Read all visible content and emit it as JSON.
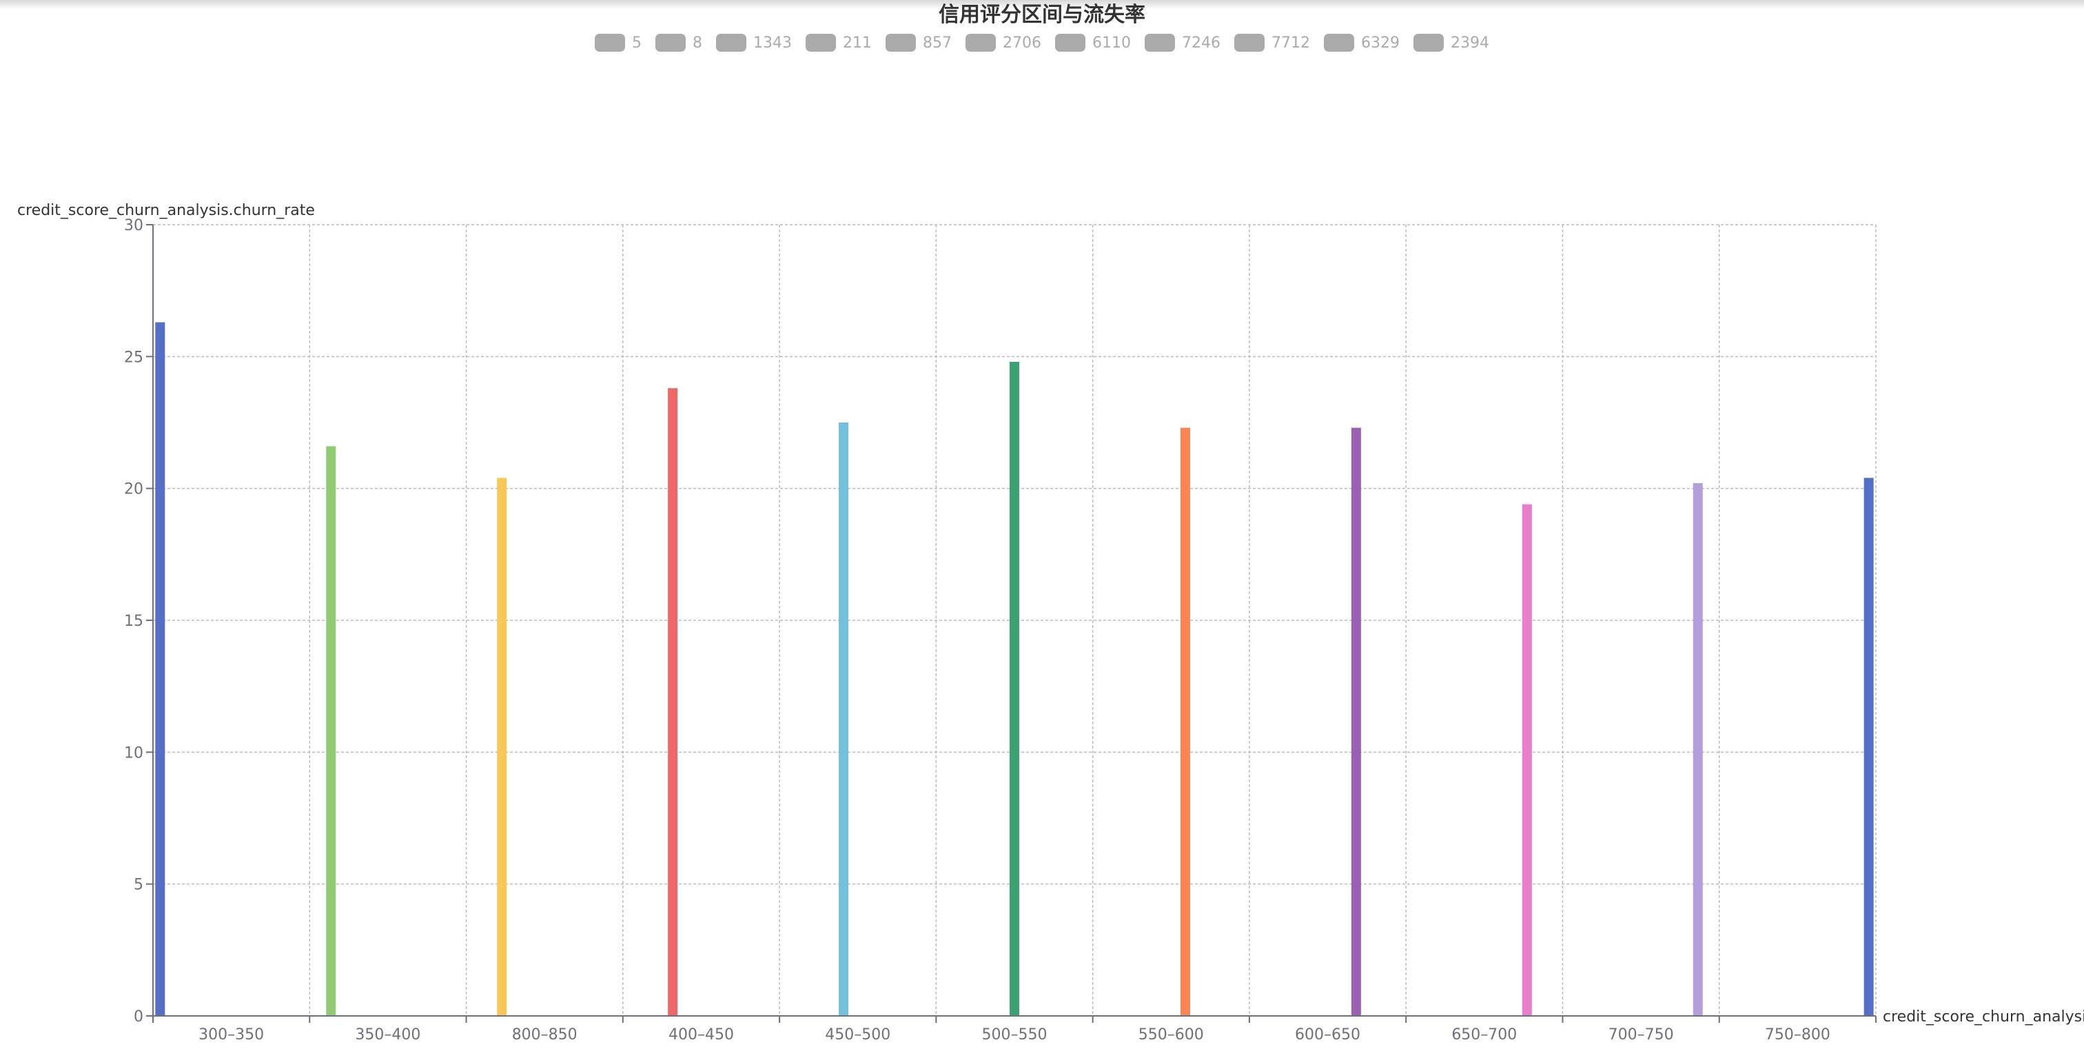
{
  "chart_data": {
    "type": "bar",
    "title": "信用评分区间与流失率",
    "xlabel": "credit_score_churn_analysis.c",
    "ylabel": "credit_score_churn_analysis.churn_rate",
    "ylim": [
      0,
      30
    ],
    "yticks": [
      "0",
      "5",
      "10",
      "15",
      "20",
      "25",
      "30"
    ],
    "grid": true,
    "legend_position": "top-center",
    "categories": [
      "300–350",
      "350–400",
      "800–850",
      "400–450",
      "450–500",
      "500–550",
      "550–600",
      "600–650",
      "650–700",
      "700–750",
      "750–800"
    ],
    "series": [
      {
        "name": "5",
        "color": "#5470c6",
        "values": [
          26.3,
          null,
          null,
          null,
          null,
          null,
          null,
          null,
          null,
          null,
          null
        ]
      },
      {
        "name": "8",
        "color": "#91cc75",
        "values": [
          null,
          21.6,
          null,
          null,
          null,
          null,
          null,
          null,
          null,
          null,
          null
        ]
      },
      {
        "name": "1343",
        "color": "#fac858",
        "values": [
          null,
          null,
          20.4,
          null,
          null,
          null,
          null,
          null,
          null,
          null,
          null
        ]
      },
      {
        "name": "211",
        "color": "#ee6666",
        "values": [
          null,
          null,
          null,
          23.8,
          null,
          null,
          null,
          null,
          null,
          null,
          null
        ]
      },
      {
        "name": "857",
        "color": "#73c0de",
        "values": [
          null,
          null,
          null,
          null,
          22.5,
          null,
          null,
          null,
          null,
          null,
          null
        ]
      },
      {
        "name": "2706",
        "color": "#3ba272",
        "values": [
          null,
          null,
          null,
          null,
          null,
          24.8,
          null,
          null,
          null,
          null,
          null
        ]
      },
      {
        "name": "6110",
        "color": "#fc8452",
        "values": [
          null,
          null,
          null,
          null,
          null,
          null,
          22.3,
          null,
          null,
          null,
          null
        ]
      },
      {
        "name": "7246",
        "color": "#9a60b4",
        "values": [
          null,
          null,
          null,
          null,
          null,
          null,
          null,
          22.3,
          null,
          null,
          null
        ]
      },
      {
        "name": "7712",
        "color": "#ea7ccc",
        "values": [
          null,
          null,
          null,
          null,
          null,
          null,
          null,
          null,
          19.4,
          null,
          null
        ]
      },
      {
        "name": "6329",
        "color": "#b39ddb",
        "values": [
          null,
          null,
          null,
          null,
          null,
          null,
          null,
          null,
          null,
          20.2,
          null
        ]
      },
      {
        "name": "2394",
        "color": "#5470c6",
        "values": [
          null,
          null,
          null,
          null,
          null,
          null,
          null,
          null,
          null,
          null,
          20.4
        ]
      }
    ]
  }
}
